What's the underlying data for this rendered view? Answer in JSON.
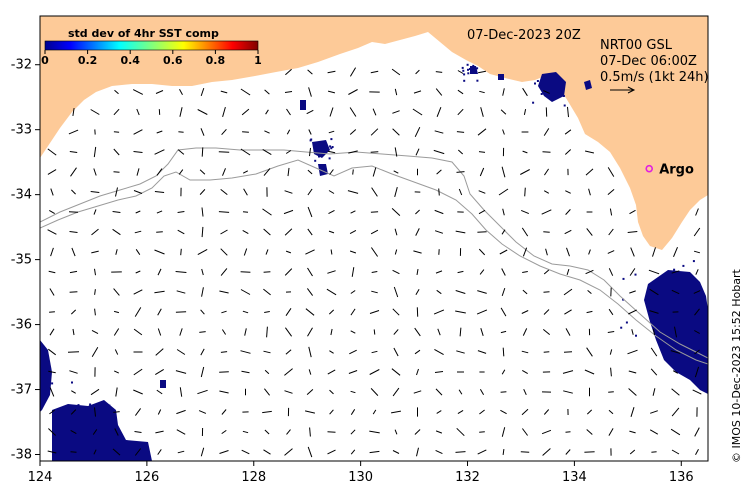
{
  "map": {
    "lon_range": [
      124,
      136.5
    ],
    "lat_range": [
      -38.1,
      -31.25
    ],
    "x_ticks": [
      "124",
      "126",
      "128",
      "130",
      "132",
      "134",
      "136"
    ],
    "y_ticks": [
      "-32",
      "-33",
      "-34",
      "-35",
      "-36",
      "-37",
      "-38"
    ],
    "land_color": "#fdca98",
    "mask_color": "#0a0a82",
    "isobath_color": "#9b9b9b"
  },
  "colorbar": {
    "title": "std dev of 4hr SST comp",
    "tick_labels": [
      "0",
      "0.2",
      "0.4",
      "0.6",
      "0.8",
      "1"
    ],
    "range": [
      0,
      1
    ]
  },
  "header": {
    "date_label": "07-Dec-2023 20Z"
  },
  "current_info": {
    "line1": "NRT00 GSL",
    "line2": "07-Dec 06:00Z",
    "line3": "0.5m/s (1kt 24h)"
  },
  "argo": {
    "label": "Argo",
    "lon": 135.4,
    "lat": -33.6,
    "marker_color": "#e020e0"
  },
  "credit": "© IMOS 10-Dec-2023 15:52 Hobart"
}
